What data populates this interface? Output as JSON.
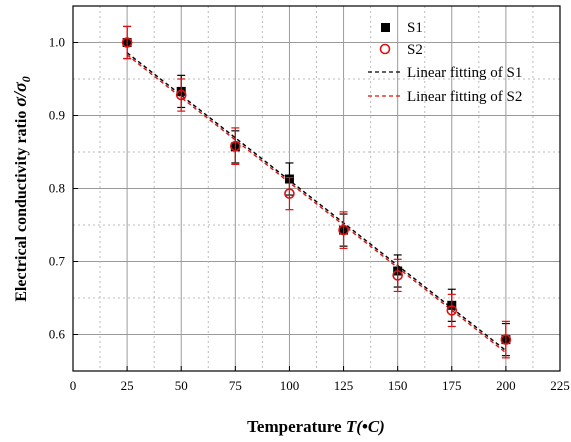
{
  "chart_data": {
    "type": "scatter",
    "xlabel_prefix": "Temperature ",
    "xlabel_var": "T",
    "xlabel_unit": "(•C)",
    "ylabel_prefix": "Electrical conductivity ratio ",
    "ylabel_sigma": "σ/σ",
    "ylabel_sub": "0",
    "xlim": [
      0,
      225
    ],
    "ylim": [
      0.55,
      1.05
    ],
    "xticks": [
      0,
      25,
      50,
      75,
      100,
      125,
      150,
      175,
      200,
      225
    ],
    "yticks": [
      0.6,
      0.7,
      0.8,
      0.9,
      1.0
    ],
    "ytick_labels": [
      "0.6",
      "0.7",
      "0.8",
      "0.9",
      "1.0"
    ],
    "grid": true,
    "legend_position": "top-right",
    "series": [
      {
        "name": "S1",
        "marker": "filled-square",
        "color": "#000000",
        "x": [
          25,
          50,
          75,
          100,
          125,
          150,
          175,
          200
        ],
        "y": [
          1.0,
          0.933,
          0.857,
          0.813,
          0.743,
          0.687,
          0.64,
          0.593
        ],
        "yerr": [
          0.022,
          0.022,
          0.022,
          0.022,
          0.022,
          0.022,
          0.022,
          0.022
        ]
      },
      {
        "name": "S2",
        "marker": "open-circle",
        "color": "#dd1111",
        "x": [
          25,
          50,
          75,
          100,
          125,
          150,
          175,
          200
        ],
        "y": [
          1.0,
          0.928,
          0.858,
          0.793,
          0.743,
          0.681,
          0.633,
          0.593
        ],
        "yerr": [
          0.022,
          0.022,
          0.025,
          0.022,
          0.025,
          0.022,
          0.022,
          0.025
        ]
      },
      {
        "name": "Linear fitting of S1",
        "type": "line",
        "style": "dashed",
        "color": "#000000",
        "x": [
          25,
          200
        ],
        "y": [
          0.986,
          0.578
        ]
      },
      {
        "name": "Linear fitting of S2",
        "type": "line",
        "style": "dashed",
        "color": "#dd1111",
        "x": [
          25,
          200
        ],
        "y": [
          0.983,
          0.575
        ]
      }
    ]
  }
}
